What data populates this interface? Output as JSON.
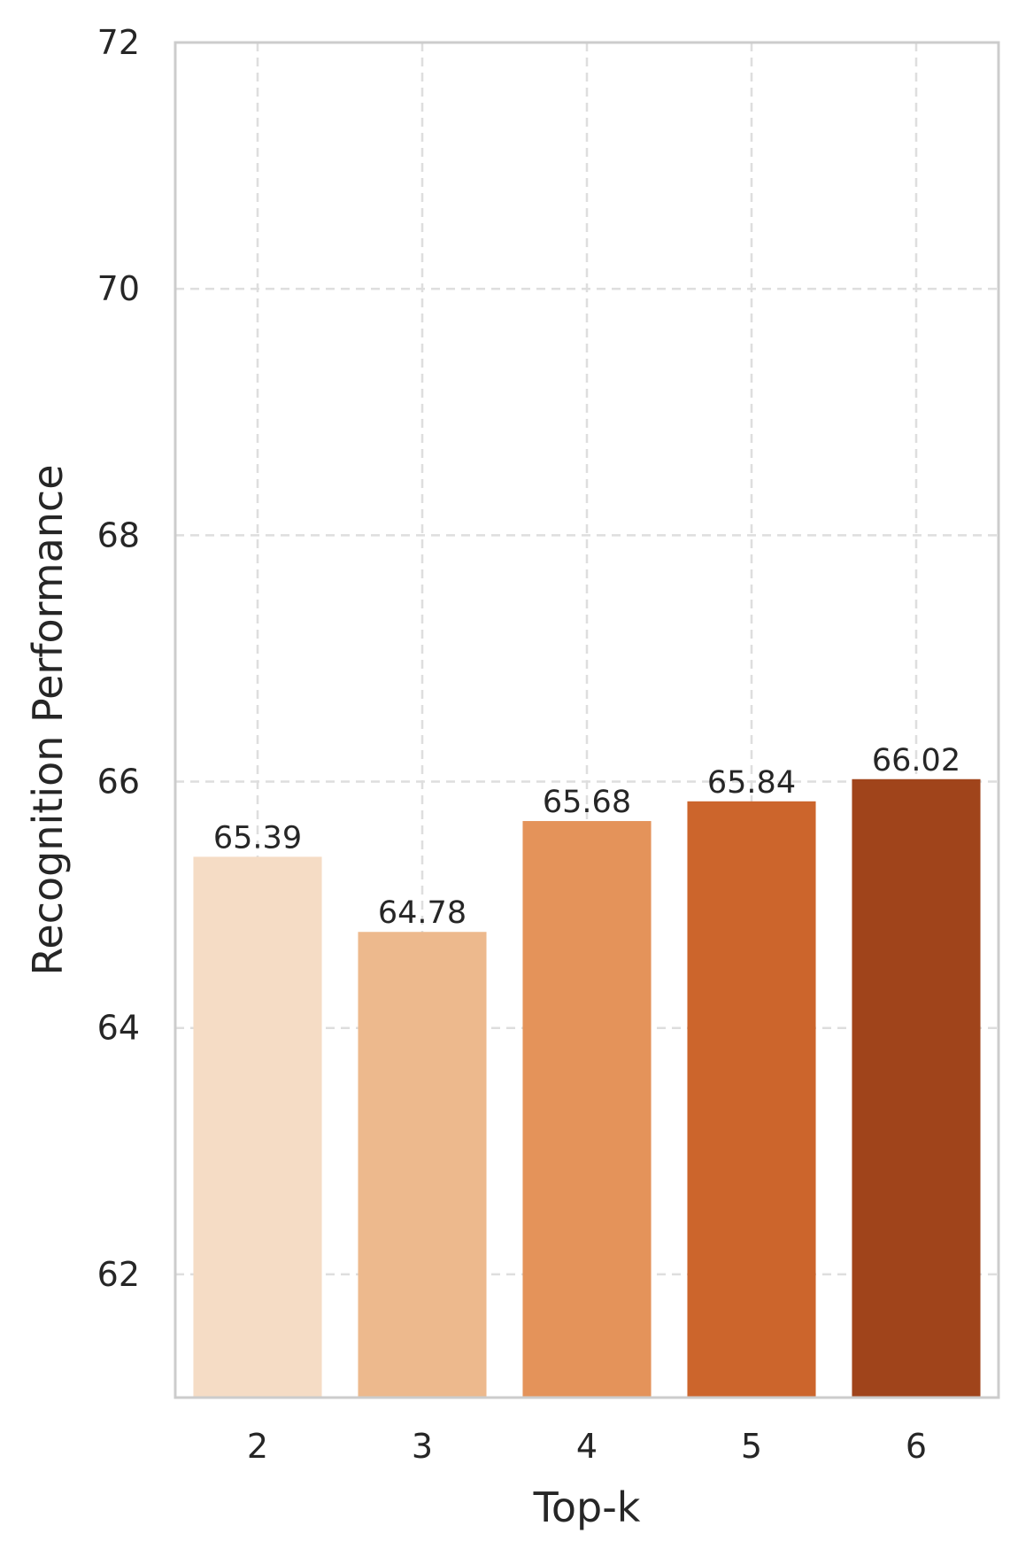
{
  "chart_data": {
    "type": "bar",
    "categories": [
      "2",
      "3",
      "4",
      "5",
      "6"
    ],
    "values": [
      65.39,
      64.78,
      65.68,
      65.84,
      66.02
    ],
    "value_labels": [
      "65.39",
      "64.78",
      "65.68",
      "65.84",
      "66.02"
    ],
    "colors": [
      "#f5dcc5",
      "#edb98d",
      "#e4935a",
      "#cc652c",
      "#a0441b"
    ],
    "xlabel": "Top-k",
    "ylabel": "Recognition Performance",
    "ylim": [
      61,
      72
    ],
    "yticks": [
      62,
      64,
      66,
      68,
      70,
      72
    ],
    "ytick_labels": [
      "62",
      "64",
      "66",
      "68",
      "70",
      "72"
    ],
    "grid": true,
    "grid_color": "#dedede",
    "frame_color": "#cccccc",
    "text_color": "#262626"
  }
}
